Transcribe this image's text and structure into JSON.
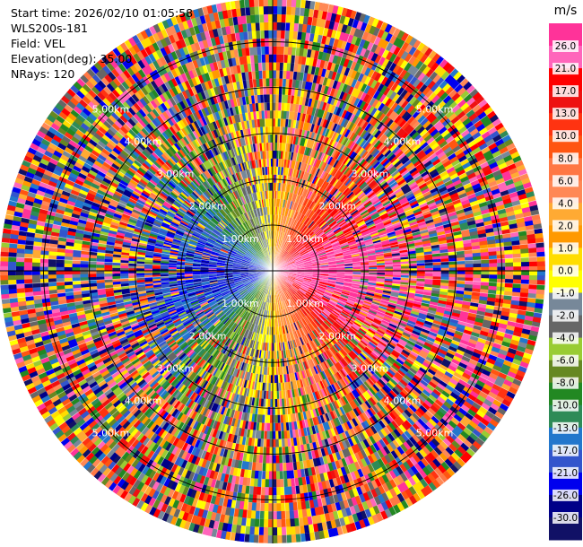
{
  "info": {
    "start_time": "Start time: 2026/02/10 01:05:58",
    "instrument": "WLS200s-181",
    "field": "Field: VEL",
    "elevation": "Elevation(deg): 35.00",
    "nrays": "NRays: 120"
  },
  "chart_data": {
    "type": "heatmap",
    "projection": "polar (PPI scan)",
    "field": "VEL",
    "nrays": 120,
    "elevation_deg": 35.0,
    "range_rings": [
      {
        "value": 1,
        "label": "1.00km"
      },
      {
        "value": 2,
        "label": "2.00km"
      },
      {
        "value": 3,
        "label": "3.00km"
      },
      {
        "value": 4,
        "label": "4.00km"
      },
      {
        "value": 5,
        "label": "5.00km"
      }
    ],
    "max_range_km": 5.95,
    "colorbar": {
      "unit": "m/s",
      "ticks": [
        "26.0",
        "21.0",
        "17.0",
        "13.0",
        "10.0",
        "8.0",
        "6.0",
        "4.0",
        "2.0",
        "1.0",
        "0.0",
        "-1.0",
        "-2.0",
        "-4.0",
        "-6.0",
        "-8.0",
        "-10.0",
        "-13.0",
        "-17.0",
        "-21.0",
        "-26.0",
        "-30.0"
      ],
      "colors": [
        "#ff3399",
        "#ff66bb",
        "#ff0000",
        "#ee1111",
        "#ff3311",
        "#ff5511",
        "#ff7744",
        "#ff8855",
        "#ffaa33",
        "#ff9900",
        "#ffdd00",
        "#ffff00",
        "#778899",
        "#666666",
        "#99cc33",
        "#668822",
        "#228822",
        "#2e8b57",
        "#2277cc",
        "#3355cc",
        "#0000ee",
        "#000088",
        "#111166"
      ]
    },
    "pattern": "near-range radial velocity: negative (blue/green) toward west, positive (yellow/orange/red) toward east; far range noisy"
  }
}
